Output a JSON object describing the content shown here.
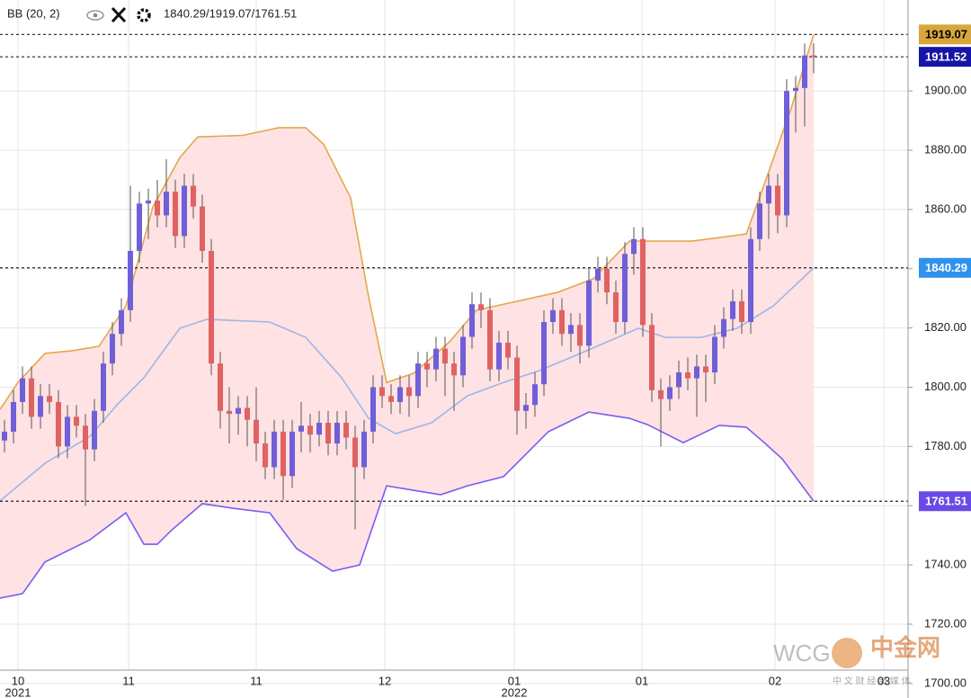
{
  "chart_data": {
    "type": "candlestick",
    "indicator": "BB (20, 2)",
    "indicator_values": "1840.29/1919.07/1761.51",
    "up_color": "#6f5fd8",
    "down_color": "#e06262",
    "open": [
      1782,
      1785,
      1795,
      1803,
      1790,
      1797,
      1795,
      1780,
      1790,
      1787,
      1779,
      1792,
      1808,
      1818,
      1826,
      1846,
      1862,
      1863,
      1858,
      1866,
      1851,
      1868,
      1861,
      1846,
      1808,
      1792,
      1791,
      1793,
      1789,
      1781,
      1773,
      1785,
      1770,
      1785,
      1787,
      1784,
      1788,
      1781,
      1788,
      1783,
      1773,
      1785,
      1800,
      1797,
      1795,
      1800,
      1797,
      1808,
      1806,
      1813,
      1808,
      1804,
      1817,
      1828,
      1826,
      1806,
      1815,
      1810,
      1792,
      1794,
      1801,
      1822,
      1826,
      1818,
      1821,
      1814,
      1836,
      1840,
      1832,
      1822,
      1845,
      1850,
      1821,
      1799,
      1796,
      1800,
      1805,
      1803,
      1807,
      1805,
      1817,
      1823,
      1829,
      1822,
      1850,
      1862,
      1868,
      1858,
      1900,
      1901,
      1912
    ],
    "high": [
      1789,
      1799,
      1807,
      1807,
      1801,
      1801,
      1799,
      1794,
      1794,
      1791,
      1796,
      1812,
      1822,
      1830,
      1868,
      1866,
      1867,
      1870,
      1877,
      1870,
      1872,
      1872,
      1865,
      1850,
      1812,
      1800,
      1797,
      1797,
      1800,
      1785,
      1789,
      1789,
      1789,
      1795,
      1791,
      1792,
      1792,
      1792,
      1792,
      1787,
      1789,
      1804,
      1804,
      1801,
      1804,
      1804,
      1812,
      1812,
      1817,
      1817,
      1812,
      1821,
      1832,
      1832,
      1830,
      1819,
      1819,
      1814,
      1798,
      1805,
      1826,
      1830,
      1830,
      1825,
      1825,
      1840,
      1844,
      1844,
      1836,
      1849,
      1854,
      1854,
      1825,
      1803,
      1804,
      1809,
      1810,
      1811,
      1811,
      1821,
      1827,
      1833,
      1833,
      1854,
      1866,
      1872,
      1872,
      1904,
      1905,
      1916,
      1916
    ],
    "low": [
      1778,
      1781,
      1791,
      1786,
      1786,
      1791,
      1776,
      1776,
      1783,
      1760,
      1775,
      1788,
      1804,
      1814,
      1822,
      1842,
      1850,
      1854,
      1854,
      1847,
      1847,
      1857,
      1842,
      1804,
      1786,
      1781,
      1784,
      1780,
      1775,
      1769,
      1769,
      1762,
      1766,
      1778,
      1778,
      1780,
      1777,
      1777,
      1779,
      1752,
      1769,
      1781,
      1793,
      1791,
      1791,
      1790,
      1793,
      1800,
      1802,
      1797,
      1792,
      1800,
      1813,
      1820,
      1802,
      1802,
      1806,
      1784,
      1786,
      1790,
      1797,
      1818,
      1814,
      1812,
      1808,
      1810,
      1832,
      1828,
      1818,
      1818,
      1838,
      1817,
      1795,
      1780,
      1792,
      1796,
      1799,
      1790,
      1795,
      1801,
      1813,
      1819,
      1818,
      1818,
      1846,
      1850,
      1852,
      1854,
      1886,
      1888,
      1906
    ],
    "close": [
      1785,
      1795,
      1803,
      1790,
      1797,
      1795,
      1780,
      1790,
      1787,
      1779,
      1792,
      1808,
      1818,
      1826,
      1846,
      1862,
      1863,
      1858,
      1866,
      1851,
      1868,
      1861,
      1846,
      1808,
      1792,
      1791,
      1793,
      1789,
      1781,
      1773,
      1785,
      1770,
      1785,
      1787,
      1784,
      1788,
      1781,
      1788,
      1783,
      1773,
      1785,
      1800,
      1797,
      1795,
      1800,
      1797,
      1808,
      1806,
      1813,
      1808,
      1804,
      1817,
      1828,
      1826,
      1806,
      1815,
      1810,
      1792,
      1794,
      1801,
      1822,
      1826,
      1818,
      1821,
      1814,
      1836,
      1840,
      1832,
      1822,
      1845,
      1850,
      1821,
      1799,
      1796,
      1800,
      1805,
      1803,
      1807,
      1805,
      1817,
      1823,
      1829,
      1822,
      1850,
      1862,
      1868,
      1858,
      1900,
      1901,
      1912,
      1911.52
    ],
    "bands": [
      {
        "color": "#e3a84a",
        "x": [
          -0.5,
          1.5,
          4.5,
          7.5,
          10.5,
          13.5,
          16.5,
          19.5,
          21.5,
          26.5,
          30.5,
          33.5,
          35.5,
          38.5,
          40.5,
          42.5,
          45.5,
          49.5,
          52.5,
          55.5,
          61.5,
          65.5,
          69.5,
          76.5,
          82.5,
          84.5,
          87.5,
          90
        ],
        "values": [
          1792.5,
          1801.6,
          1811.4,
          1812.3,
          1813.8,
          1827.4,
          1860.8,
          1877.5,
          1884.5,
          1885,
          1887.6,
          1887.6,
          1882,
          1863.9,
          1830.5,
          1801.6,
          1804.7,
          1815.3,
          1826,
          1828,
          1832,
          1836.6,
          1849.3,
          1849.3,
          1851.7,
          1868.4,
          1894.2,
          1919.07
        ]
      },
      {
        "color": "#9db6e6",
        "x": [
          -0.5,
          4.5,
          9.5,
          12.5,
          15.5,
          19.5,
          22.5,
          29.5,
          33.5,
          37.5,
          40.5,
          43.5,
          47.5,
          51.5,
          55.5,
          59.5,
          63.5,
          67.5,
          70.5,
          73.5,
          77.5,
          81.5,
          85.5,
          90
        ],
        "values": [
          1761.6,
          1774.3,
          1783.4,
          1794,
          1803.2,
          1819.9,
          1822.9,
          1822,
          1816.8,
          1803.2,
          1789.5,
          1784.3,
          1788,
          1797.1,
          1801.6,
          1805.6,
          1810.7,
          1815.9,
          1819.9,
          1816.8,
          1816.8,
          1819.9,
          1827.4,
          1840.29
        ]
      },
      {
        "color": "#7a5cf0",
        "x": [
          -0.5,
          2,
          4.5,
          9.5,
          13.5,
          15.5,
          17,
          18.5,
          22,
          25.5,
          29.5,
          32.5,
          36.5,
          39.5,
          42.5,
          45.5,
          48.5,
          51.5,
          55.5,
          60.5,
          65,
          69.5,
          71.5,
          75.5,
          79.5,
          82.5,
          84.5,
          86.5,
          90
        ],
        "values": [
          1728.8,
          1730.3,
          1741,
          1748.5,
          1757.6,
          1747,
          1747,
          1751.5,
          1760.7,
          1759.1,
          1757.6,
          1745.5,
          1737.9,
          1740,
          1766.7,
          1765.2,
          1763.7,
          1766.7,
          1769.8,
          1785,
          1791.6,
          1789.5,
          1787.4,
          1781.3,
          1787.1,
          1786.5,
          1781.3,
          1775.8,
          1761.51
        ]
      }
    ],
    "band_fill": "#ffe2e4",
    "price_tags": [
      {
        "value": 1919.07,
        "color": "#d9a63c",
        "text_color": "#000000"
      },
      {
        "value": 1911.52,
        "color": "#1616a6",
        "text_color": "#ffffff"
      },
      {
        "value": 1840.29,
        "color": "#2f92ec",
        "text_color": "#ffffff"
      },
      {
        "value": 1761.51,
        "color": "#6a4ae6",
        "text_color": "#ffffff"
      }
    ],
    "xlim": [
      -0.5,
      100.5
    ],
    "ylim": [
      1704.5,
      1930.7
    ],
    "yticks": [
      {
        "value": 1700,
        "label": "1700.00"
      },
      {
        "value": 1720,
        "label": "1720.00"
      },
      {
        "value": 1740,
        "label": "1740.00"
      },
      {
        "value": 1760,
        "label": "1760.00"
      },
      {
        "value": 1780,
        "label": "1780.00"
      },
      {
        "value": 1800,
        "label": "1800.00"
      },
      {
        "value": 1820,
        "label": "1820.00"
      },
      {
        "value": 1840,
        "label": "1840.00"
      },
      {
        "value": 1860,
        "label": "1860.00"
      },
      {
        "value": 1880,
        "label": "1880.00"
      },
      {
        "value": 1900,
        "label": "1900.00"
      }
    ],
    "xticks": [
      {
        "value": 1.5,
        "label": "10"
      },
      {
        "value": 13.8,
        "label": "11"
      },
      {
        "value": 28,
        "label": "11"
      },
      {
        "value": 42.3,
        "label": "12"
      },
      {
        "value": 56.7,
        "label": "01"
      },
      {
        "value": 70.9,
        "label": "01"
      },
      {
        "value": 85.7,
        "label": "02"
      },
      {
        "value": 97.8,
        "label": "03"
      }
    ],
    "year_labels": [
      {
        "value": 1.5,
        "label": "2021"
      },
      {
        "value": 56.7,
        "label": "2022"
      }
    ],
    "grid": true,
    "watermark": [
      "WCG",
      "中金网",
      "中 文 财 经 新 媒 体"
    ]
  }
}
